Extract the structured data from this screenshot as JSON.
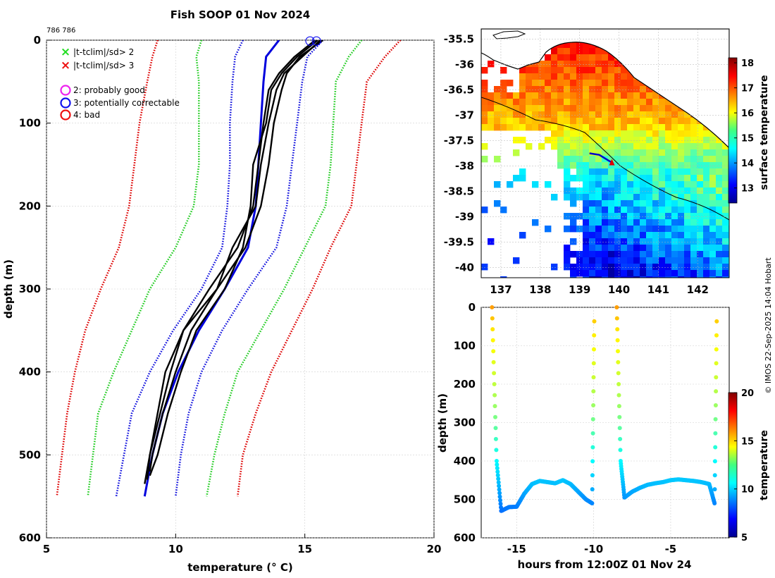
{
  "figure": {
    "title": "Fish SOOP 01 Nov 2024",
    "id_label": "786 786",
    "credit": "© IMOS 22-Sep-2025 14:04 Hobart"
  },
  "chart_data": [
    {
      "type": "line",
      "name": "profile",
      "xlabel": "temperature (° C)",
      "ylabel": "depth (m)",
      "xlim": [
        5,
        20
      ],
      "ylim": [
        600,
        0
      ],
      "xticks": [
        "5",
        "10",
        "15",
        "20"
      ],
      "yticks": [
        "0",
        "100",
        "200",
        "300",
        "400",
        "500",
        "600"
      ],
      "grid": true,
      "legend": [
        {
          "marker": "×",
          "color": "#22dd22",
          "label": "|t-tclim|/sd> 2"
        },
        {
          "marker": "×",
          "color": "#ee1111",
          "label": "|t-tclim|/sd> 3"
        },
        {
          "marker": "○",
          "color": "#ee22ee",
          "label": "2: probably good"
        },
        {
          "marker": "○",
          "color": "#1111ee",
          "label": "3: potentially correctable"
        },
        {
          "marker": "○",
          "color": "#ee1111",
          "label": "4: bad"
        }
      ],
      "climatology_depths": [
        0,
        20,
        50,
        100,
        150,
        200,
        250,
        300,
        350,
        400,
        450,
        500,
        550
      ],
      "series": [
        {
          "name": "clim minus 3sd",
          "color": "#dd0000",
          "style": "dotted",
          "values": [
            9.3,
            9.1,
            8.9,
            8.6,
            8.4,
            8.2,
            7.8,
            7.1,
            6.5,
            6.1,
            5.8,
            5.6,
            5.4
          ]
        },
        {
          "name": "clim minus 2sd",
          "color": "#22cc22",
          "style": "dotted",
          "values": [
            11.0,
            10.8,
            10.9,
            10.9,
            10.9,
            10.7,
            10.0,
            9.0,
            8.3,
            7.6,
            7.0,
            6.8,
            6.6
          ]
        },
        {
          "name": "clim minus 1sd",
          "color": "#1111dd",
          "style": "dotted",
          "values": [
            12.6,
            12.3,
            12.2,
            12.1,
            12.1,
            12.0,
            11.8,
            11.0,
            9.9,
            9.0,
            8.3,
            8.0,
            7.7
          ]
        },
        {
          "name": "climatology mean",
          "color": "#0000dd",
          "style": "solid",
          "values": [
            14.0,
            13.5,
            13.4,
            13.3,
            13.2,
            13.1,
            12.8,
            11.9,
            10.9,
            10.1,
            9.5,
            9.1,
            8.8
          ]
        },
        {
          "name": "clim plus 1sd",
          "color": "#1111dd",
          "style": "dotted",
          "values": [
            15.7,
            15.1,
            14.9,
            14.7,
            14.5,
            14.3,
            13.9,
            12.8,
            11.8,
            11.0,
            10.5,
            10.2,
            10.0
          ]
        },
        {
          "name": "clim plus 2sd",
          "color": "#22cc22",
          "style": "dotted",
          "values": [
            17.2,
            16.7,
            16.2,
            16.1,
            16.0,
            15.8,
            15.0,
            14.2,
            13.3,
            12.4,
            11.9,
            11.5,
            11.2
          ]
        },
        {
          "name": "clim plus 3sd",
          "color": "#dd0000",
          "style": "dotted",
          "values": [
            18.7,
            18.1,
            17.4,
            17.2,
            17.0,
            16.8,
            16.0,
            15.3,
            14.5,
            13.7,
            13.1,
            12.6,
            12.4
          ]
        }
      ],
      "profiles": [
        {
          "name": "drop 1",
          "depths": [
            0,
            20,
            40,
            60,
            100,
            150,
            200,
            250,
            300,
            350,
            400,
            450,
            500,
            520
          ],
          "values": [
            15.7,
            14.8,
            14.3,
            14.1,
            13.8,
            13.6,
            13.3,
            12.7,
            11.6,
            10.6,
            10.0,
            9.5,
            9.1,
            9.0
          ]
        },
        {
          "name": "drop 2",
          "depths": [
            0,
            20,
            40,
            60,
            100,
            150,
            200,
            250,
            300,
            350,
            400,
            450,
            500,
            530
          ],
          "values": [
            15.4,
            14.6,
            14.0,
            13.6,
            13.4,
            13.2,
            13.0,
            12.4,
            11.3,
            10.3,
            9.8,
            9.4,
            9.0,
            8.9
          ]
        },
        {
          "name": "drop 3",
          "depths": [
            0,
            20,
            40,
            60,
            100,
            150,
            200,
            250,
            300,
            350,
            400,
            450,
            500,
            535
          ],
          "values": [
            15.6,
            14.9,
            14.2,
            13.9,
            13.6,
            13.3,
            13.1,
            12.2,
            11.6,
            10.3,
            9.6,
            9.3,
            9.0,
            8.8
          ]
        },
        {
          "name": "drop 4",
          "depths": [
            0,
            20,
            40,
            60,
            100,
            150,
            200,
            250,
            300,
            350,
            400,
            450,
            500,
            525
          ],
          "values": [
            15.5,
            14.7,
            14.1,
            13.7,
            13.5,
            13.0,
            12.9,
            12.6,
            11.9,
            10.8,
            10.2,
            9.7,
            9.3,
            9.0
          ]
        }
      ],
      "flag_markers": [
        {
          "temperature": 15.2,
          "depth": 1,
          "flag": "3"
        },
        {
          "temperature": 15.45,
          "depth": 1,
          "flag": "3"
        }
      ]
    },
    {
      "type": "heatmap",
      "name": "sst map",
      "xlim": [
        136.5,
        142.8
      ],
      "ylim": [
        -40.2,
        -35.3
      ],
      "xticks": [
        "137",
        "138",
        "139",
        "140",
        "141",
        "142"
      ],
      "yticks": [
        "-35.5",
        "-36",
        "-36.5",
        "-37",
        "-37.5",
        "-38",
        "-38.5",
        "-39",
        "-39.5",
        "-40"
      ],
      "colorbar": {
        "label": "surface temperature",
        "range": [
          12.4,
          18.2
        ],
        "ticks": [
          "13",
          "14",
          "15",
          "16",
          "17",
          "18"
        ]
      },
      "track_points": [
        {
          "lon": 139.25,
          "lat": -37.75
        },
        {
          "lon": 139.5,
          "lat": -37.78
        },
        {
          "lon": 139.75,
          "lat": -37.9
        },
        {
          "lon": 139.82,
          "lat": -37.93
        }
      ]
    },
    {
      "type": "scatter",
      "name": "drop time series",
      "xlabel": "hours from 12:00Z 01 Nov 24",
      "ylabel": "depth (m)",
      "xlim": [
        -17.3,
        -1.2
      ],
      "ylim": [
        600,
        0
      ],
      "xticks": [
        "-15",
        "-10",
        "-5"
      ],
      "yticks": [
        "0",
        "100",
        "200",
        "300",
        "400",
        "500",
        "600"
      ],
      "colorbar": {
        "label": "temperature",
        "range": [
          5,
          20
        ],
        "ticks": [
          "5",
          "10",
          "15",
          "20"
        ]
      },
      "drops": [
        {
          "hours": [
            -16.6,
            -16.3,
            -16.0,
            -15.5,
            -15.0,
            -14.5,
            -14.0,
            -13.5,
            -13.0,
            -12.5,
            -12.0,
            -11.5,
            -11.0,
            -10.5,
            -10.1,
            -9.95
          ],
          "depths": [
            0,
            400,
            530,
            520,
            519,
            485,
            460,
            452,
            455,
            458,
            450,
            460,
            480,
            500,
            510,
            0
          ]
        },
        {
          "hours": [
            -8.5,
            -8.25,
            -8.0,
            -7.5,
            -7.0,
            -6.5,
            -6.0,
            -5.5,
            -5.0,
            -4.5,
            -4.0,
            -3.5,
            -3.0,
            -2.5,
            -2.15,
            -2.0
          ],
          "depths": [
            0,
            400,
            495,
            480,
            470,
            462,
            458,
            455,
            450,
            448,
            450,
            452,
            455,
            460,
            510,
            0
          ]
        }
      ]
    }
  ]
}
